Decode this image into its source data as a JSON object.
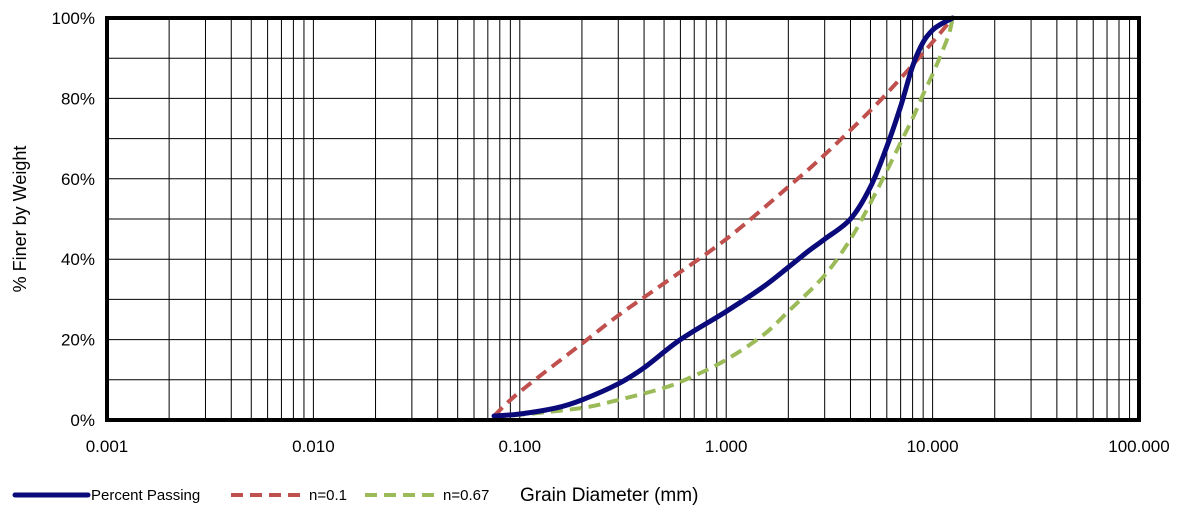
{
  "chart_data": {
    "type": "line",
    "xlabel": "Grain Diameter (mm)",
    "ylabel": "% Finer by Weight",
    "x_scale": "log",
    "xlim": [
      0.001,
      100
    ],
    "ylim": [
      0,
      100
    ],
    "x_ticks": [
      0.001,
      0.01,
      0.1,
      1,
      10,
      100
    ],
    "x_tick_labels": [
      "0.001",
      "0.010",
      "0.100",
      "1.000",
      "10.000",
      "100.000"
    ],
    "y_ticks": [
      0,
      20,
      40,
      60,
      80,
      100
    ],
    "y_tick_labels": [
      "0%",
      "20%",
      "40%",
      "60%",
      "80%",
      "100%"
    ],
    "grid": true,
    "legend_position": "bottom-left",
    "series": [
      {
        "name": "Percent Passing",
        "color": "#0a0a7a",
        "style": "solid",
        "x": [
          0.075,
          0.1,
          0.15,
          0.2,
          0.3,
          0.4,
          0.6,
          1,
          1.5,
          2,
          2.5,
          3,
          4,
          5,
          6,
          7,
          8,
          9,
          10,
          11,
          12.5
        ],
        "y": [
          1,
          1.5,
          3,
          5,
          9,
          13,
          20,
          27,
          33,
          38,
          42,
          45,
          50,
          58,
          68,
          78,
          88,
          94,
          97,
          98.5,
          100
        ]
      },
      {
        "name": "n=0.1",
        "color": "#c0504d",
        "style": "dashed",
        "x": [
          0.075,
          0.1,
          0.2,
          0.3,
          0.5,
          1,
          2,
          3,
          5,
          7,
          10,
          12.5
        ],
        "y": [
          1,
          7,
          19,
          26,
          34,
          45,
          58,
          66,
          77,
          85,
          94,
          100
        ]
      },
      {
        "name": "n=0.67",
        "color": "#9bbb59",
        "style": "dashed",
        "x": [
          0.075,
          0.1,
          0.2,
          0.3,
          0.5,
          0.7,
          1,
          1.5,
          2,
          3,
          4,
          5,
          6,
          7,
          8,
          9,
          10,
          11,
          12,
          12.5
        ],
        "y": [
          1,
          1.3,
          3,
          5,
          8,
          11,
          15,
          21,
          27,
          36,
          45,
          54,
          62,
          69,
          75,
          81,
          86,
          91,
          96,
          100
        ]
      }
    ]
  }
}
